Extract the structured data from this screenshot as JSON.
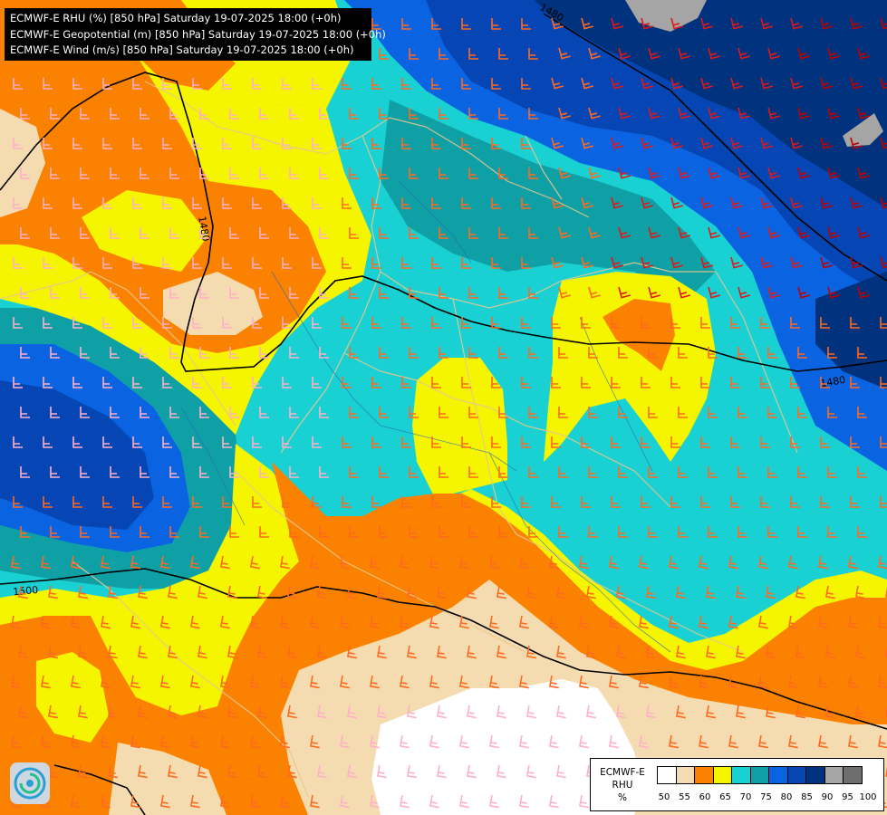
{
  "header": {
    "lines": [
      "ECMWF-E RHU (%) [850 hPa] Saturday 19-07-2025 18:00 (+0h)",
      "ECMWF-E Geopotential (m) [850 hPa] Saturday 19-07-2025 18:00 (+0h)",
      "ECMWF-E Wind (m/s) [850 hPa] Saturday 19-07-2025 18:00 (+0h)"
    ]
  },
  "legend": {
    "title_lines": [
      "ECMWF-E",
      "RHU",
      "%"
    ],
    "ticks": [
      "50",
      "55",
      "60",
      "65",
      "70",
      "75",
      "80",
      "85",
      "90",
      "95",
      "100"
    ],
    "colors": [
      "#ffffff",
      "#f5dcb0",
      "#fa8200",
      "#f5f500",
      "#19d1d3",
      "#0fa0a5",
      "#0a64e1",
      "#0546b4",
      "#00327d",
      "#a5a5a5",
      "#6e6e6e"
    ]
  },
  "isolines": {
    "labels": [
      "1480",
      "1480",
      "1480",
      "1500"
    ]
  },
  "map_colors": {
    "white": "#ffffff",
    "beige": "#f5dcb0",
    "orange": "#fa8200",
    "yellow": "#f5f500",
    "cyan": "#19d1d3",
    "teal": "#0fa0a5",
    "blue": "#0a64e1",
    "midblue": "#0546b4",
    "navy": "#00327d",
    "gray": "#a5a5a5",
    "border": "#e6c890",
    "river": "#2868b8",
    "isoline": "#000000"
  },
  "wind_colors": [
    "#ffb0c8",
    "#ff6a20",
    "#e01818",
    "#c00000"
  ],
  "logo": {
    "name": "meteo-logo-icon"
  }
}
